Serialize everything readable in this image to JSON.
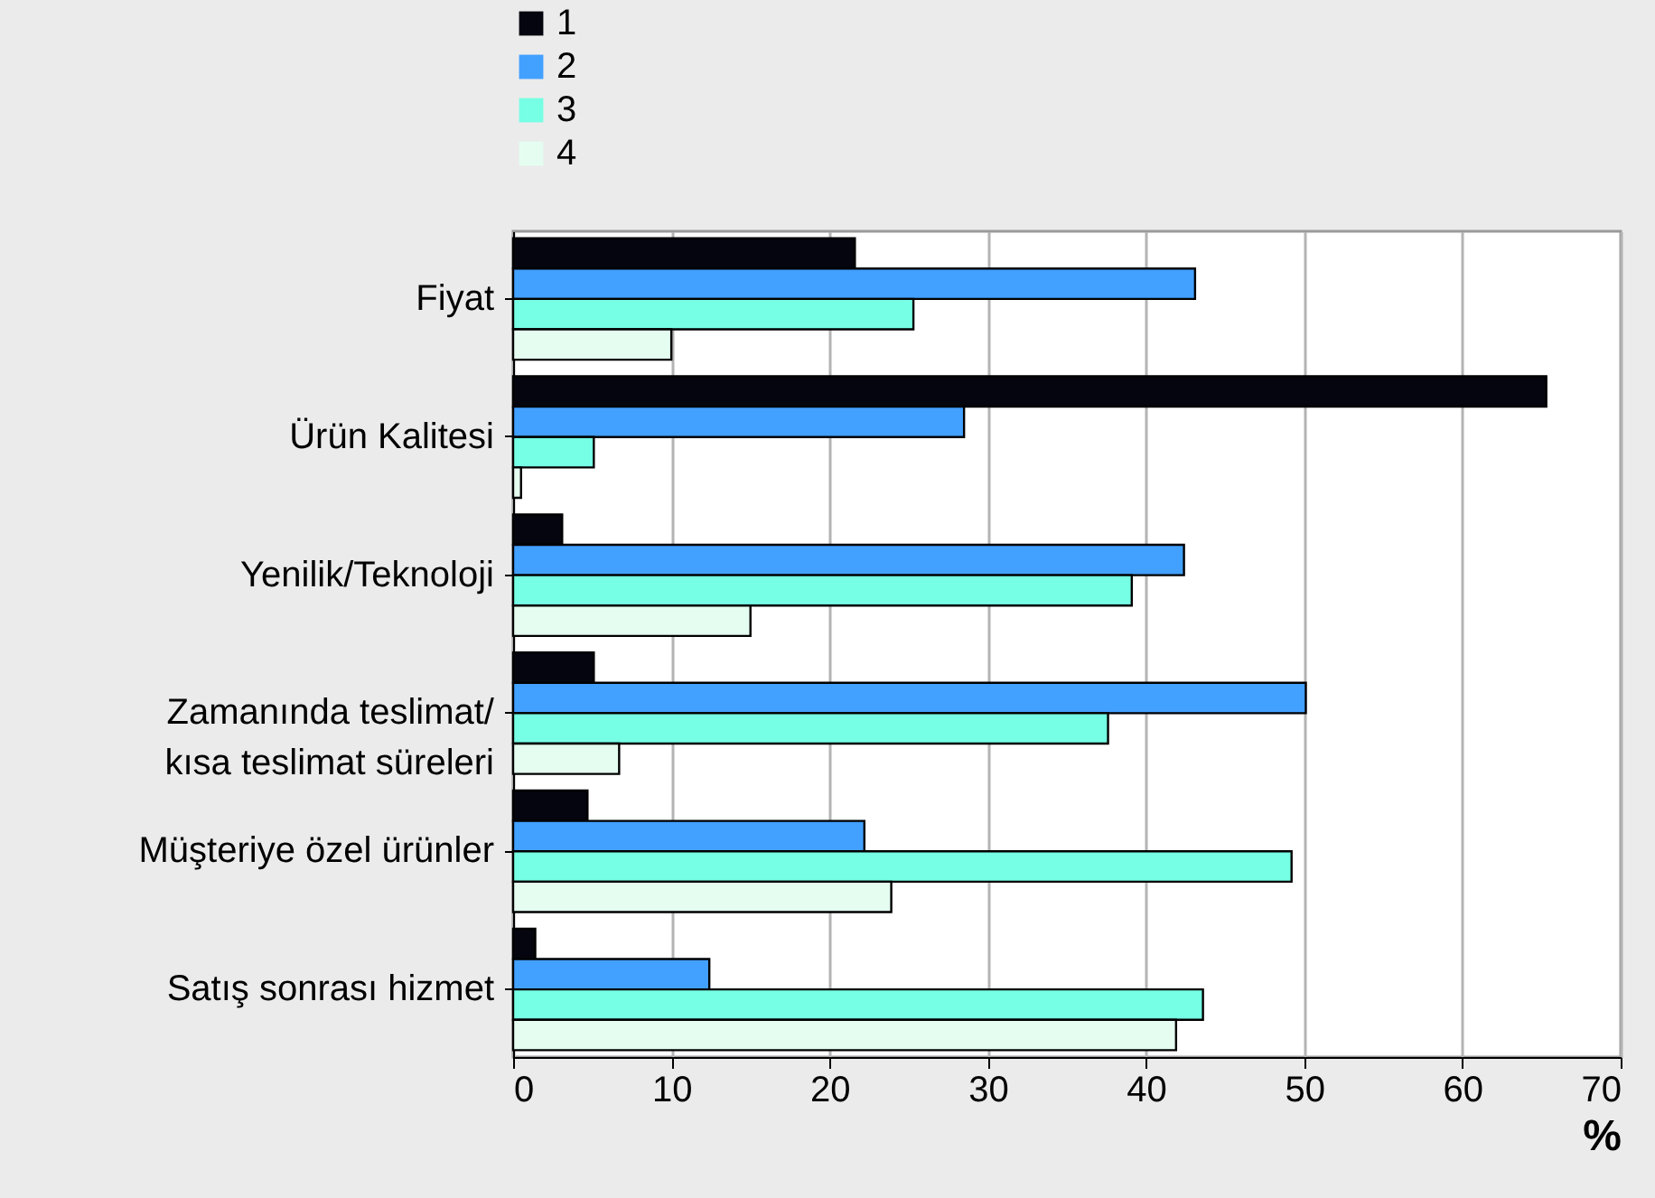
{
  "chart_data": {
    "type": "bar",
    "orientation": "horizontal",
    "xlabel": "%",
    "categories": [
      "Fiyat",
      "Ürün Kalitesi",
      "Yenilik/Teknoloji",
      "Zamanında teslimat/\nkısa teslimat süreleri",
      "Müşteriye özel ürünler",
      "Satış sonrası hizmet"
    ],
    "series": [
      {
        "name": "1",
        "color": "#05050f",
        "values": [
          21.6,
          65.3,
          3.1,
          5.1,
          4.7,
          1.4
        ]
      },
      {
        "name": "2",
        "color": "#42a0ff",
        "values": [
          43.1,
          28.5,
          42.4,
          50.1,
          22.2,
          12.4
        ]
      },
      {
        "name": "3",
        "color": "#76ffe4",
        "values": [
          25.3,
          5.1,
          39.1,
          37.6,
          49.2,
          43.6
        ]
      },
      {
        "name": "4",
        "color": "#e4fdf0",
        "values": [
          10.0,
          0.5,
          15.0,
          6.7,
          23.9,
          41.9
        ]
      }
    ],
    "xlim": [
      0,
      70
    ],
    "xticks": [
      0,
      10,
      20,
      30,
      40,
      50,
      60,
      70
    ],
    "grid": "x",
    "legend": "top left"
  }
}
